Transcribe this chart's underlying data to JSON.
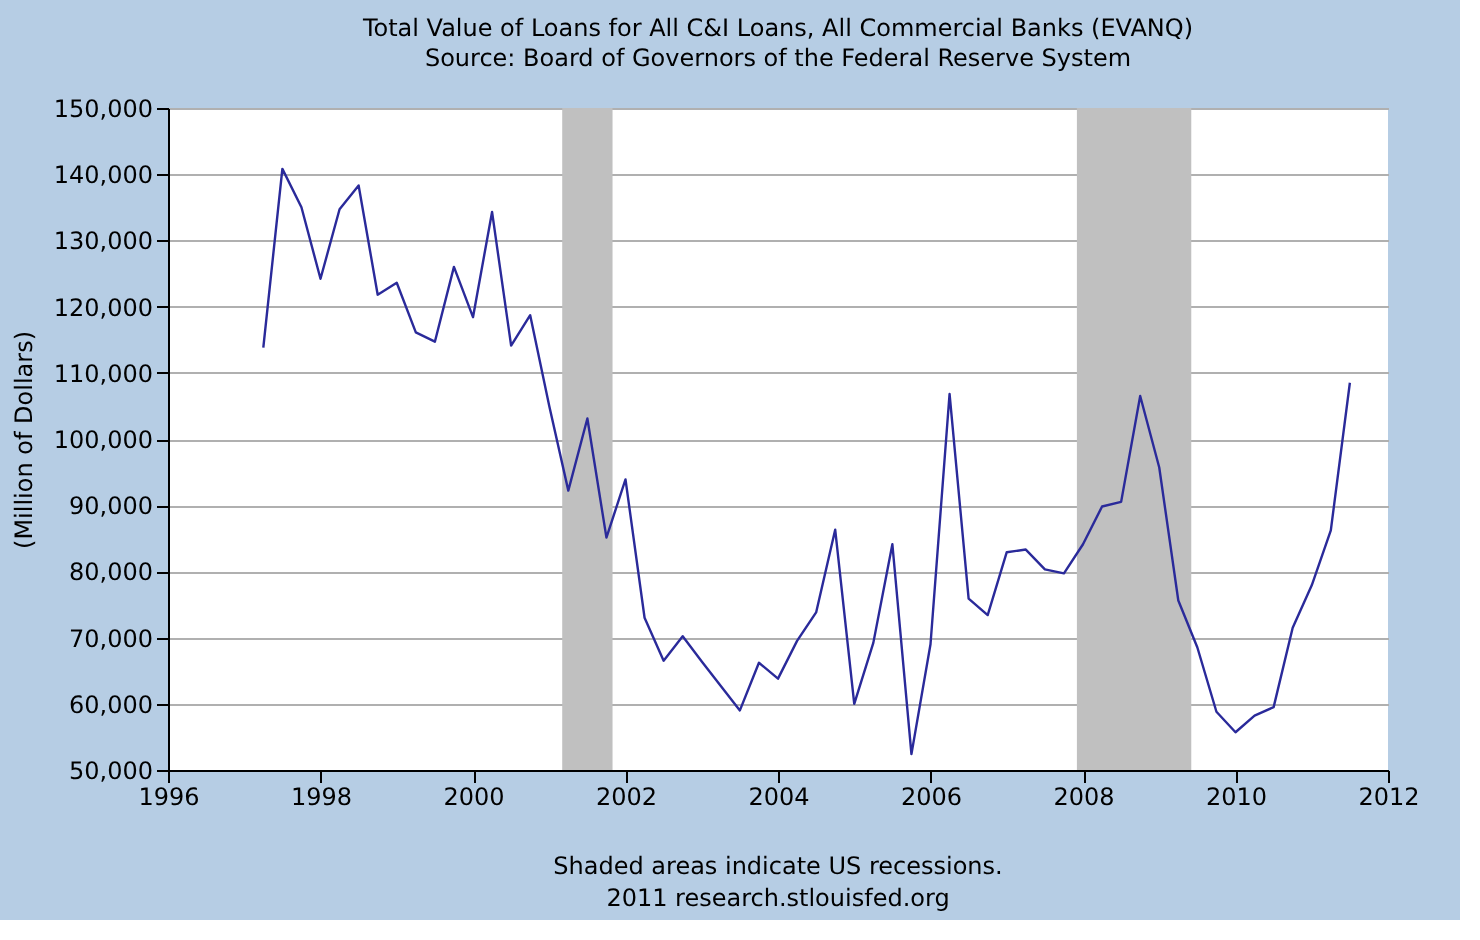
{
  "chart_data": {
    "type": "line",
    "title": "Total Value of Loans for All C&I Loans, All Commercial Banks (EVANQ)",
    "subtitle": "Source: Board of Governors of the Federal Reserve System",
    "ylabel": "(Million of Dollars)",
    "annotations": [
      "Shaded areas indicate US recessions.",
      "2011 research.stlouisfed.org"
    ],
    "x": [
      1997.25,
      1997.5,
      1997.75,
      1998.0,
      1998.25,
      1998.5,
      1998.75,
      1999.0,
      1999.25,
      1999.5,
      1999.75,
      2000.0,
      2000.25,
      2000.5,
      2000.75,
      2001.0,
      2001.25,
      2001.5,
      2001.75,
      2002.0,
      2002.25,
      2002.5,
      2002.75,
      2003.0,
      2003.25,
      2003.5,
      2003.75,
      2004.0,
      2004.25,
      2004.5,
      2004.75,
      2005.0,
      2005.25,
      2005.5,
      2005.75,
      2006.0,
      2006.25,
      2006.5,
      2006.75,
      2007.0,
      2007.25,
      2007.5,
      2007.75,
      2008.0,
      2008.25,
      2008.5,
      2008.75,
      2009.0,
      2009.25,
      2009.5,
      2009.75,
      2010.0,
      2010.25,
      2010.5,
      2010.75,
      2011.0,
      2011.25,
      2011.5
    ],
    "series": [
      {
        "color": "#2a2a9a",
        "values": [
          113800,
          140800,
          135000,
          124200,
          134700,
          138300,
          121800,
          123600,
          116100,
          114700,
          126000,
          118400,
          134300,
          114100,
          118700,
          105000,
          92200,
          103100,
          85100,
          93900,
          73000,
          66500,
          70200,
          66400,
          62700,
          59000,
          66200,
          63800,
          69500,
          73800,
          86300,
          60000,
          69200,
          84100,
          52400,
          69000,
          106800,
          75900,
          73400,
          82900,
          83300,
          80300,
          79700,
          84100,
          89800,
          90500,
          106500,
          95700,
          75600,
          68500,
          58800,
          55700,
          58200,
          59500,
          71500,
          77900,
          86200,
          108500
        ]
      }
    ],
    "xlim": [
      1996,
      2012
    ],
    "xticks": [
      1996,
      1998,
      2000,
      2002,
      2004,
      2006,
      2008,
      2010,
      2012
    ],
    "ylim": [
      50000,
      150000
    ],
    "yticks": [
      {
        "value": 50000,
        "label": "50,000"
      },
      {
        "value": 60000,
        "label": "60,000"
      },
      {
        "value": 70000,
        "label": "70,000"
      },
      {
        "value": 80000,
        "label": "80,000"
      },
      {
        "value": 90000,
        "label": "90,000"
      },
      {
        "value": 100000,
        "label": "100,000"
      },
      {
        "value": 110000,
        "label": "110,000"
      },
      {
        "value": 120000,
        "label": "120,000"
      },
      {
        "value": 130000,
        "label": "130,000"
      },
      {
        "value": 140000,
        "label": "140,000"
      },
      {
        "value": 150000,
        "label": "150,000"
      }
    ],
    "bands": [
      {
        "axis": "x",
        "from": 2001.17,
        "to": 2001.83,
        "color": "#c0c0c0"
      },
      {
        "axis": "x",
        "from": 2007.92,
        "to": 2009.42,
        "color": "#c0c0c0"
      }
    ],
    "grid": "y",
    "line_style": "solid",
    "marker": "none"
  }
}
